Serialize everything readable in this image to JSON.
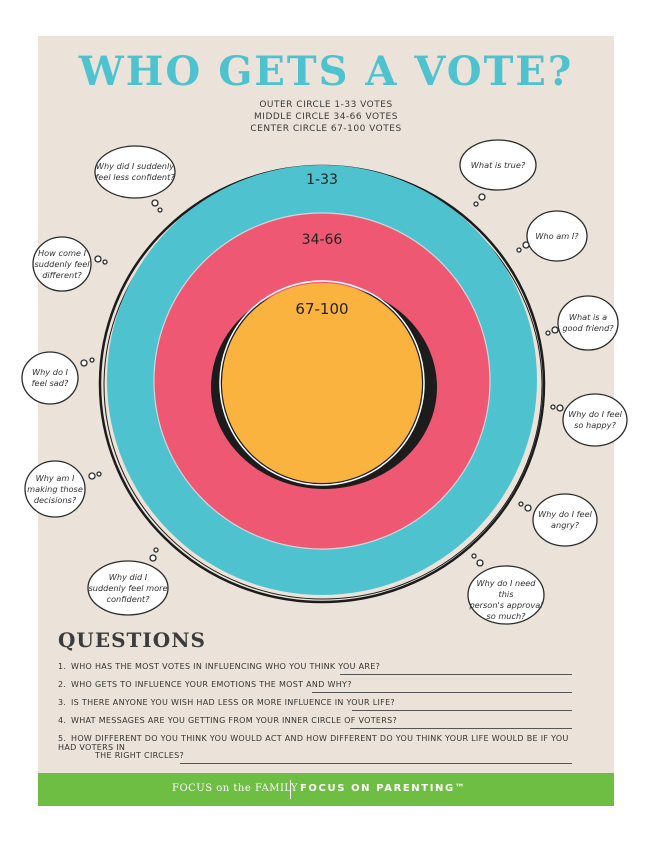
{
  "title": "WHO GETS A VOTE?",
  "legend": [
    "OUTER CIRCLE  1-33 VOTES",
    "MIDDLE CIRCLE  34-66 VOTES",
    "CENTER CIRCLE  67-100 VOTES"
  ],
  "rings": {
    "outer": "1-33",
    "middle": "34-66",
    "center": "67-100"
  },
  "colors": {
    "outer": "#4ec3cf",
    "middle": "#ef5872",
    "center": "#f9b33e",
    "paper": "#ebe3d9",
    "footer": "#6fbe44"
  },
  "bubbles": [
    {
      "lines": [
        "Why did I suddenly",
        "feel less confident?"
      ]
    },
    {
      "lines": [
        "What is true?"
      ]
    },
    {
      "lines": [
        "How come I",
        "suddenly feel",
        "different?"
      ]
    },
    {
      "lines": [
        "Who am I?"
      ]
    },
    {
      "lines": [
        "What is a",
        "good friend?"
      ]
    },
    {
      "lines": [
        "Why do I",
        "feel sad?"
      ]
    },
    {
      "lines": [
        "Why do I feel",
        "so happy?"
      ]
    },
    {
      "lines": [
        "Why am I",
        "making those",
        "decisions?"
      ]
    },
    {
      "lines": [
        "Why do I feel",
        "angry?"
      ]
    },
    {
      "lines": [
        "Why did I",
        "suddenly feel more",
        "confident?"
      ]
    },
    {
      "lines": [
        "Why do I need this",
        "person's approval",
        "so much?"
      ]
    }
  ],
  "questions_title": "QUESTIONS",
  "questions": [
    {
      "num": "1.",
      "text": "WHO HAS THE MOST VOTES IN INFLUENCING WHO YOU THINK YOU ARE?"
    },
    {
      "num": "2.",
      "text": "WHO GETS TO INFLUENCE YOUR EMOTIONS THE MOST AND WHY?"
    },
    {
      "num": "3.",
      "text": "IS THERE ANYONE YOU WISH HAD LESS OR MORE INFLUENCE IN YOUR LIFE?"
    },
    {
      "num": "4.",
      "text": "WHAT MESSAGES ARE YOU GETTING FROM YOUR INNER CIRCLE OF VOTERS?"
    },
    {
      "num": "5.",
      "text": "HOW DIFFERENT DO YOU THINK YOU WOULD ACT AND HOW DIFFERENT DO YOU THINK YOUR LIFE WOULD BE IF YOU HAD VOTERS IN",
      "text2": "THE RIGHT CIRCLES?"
    }
  ],
  "footer": {
    "left": "FOCUS on the FAMILY",
    "right": "FOCUS ON PARENTING™"
  }
}
